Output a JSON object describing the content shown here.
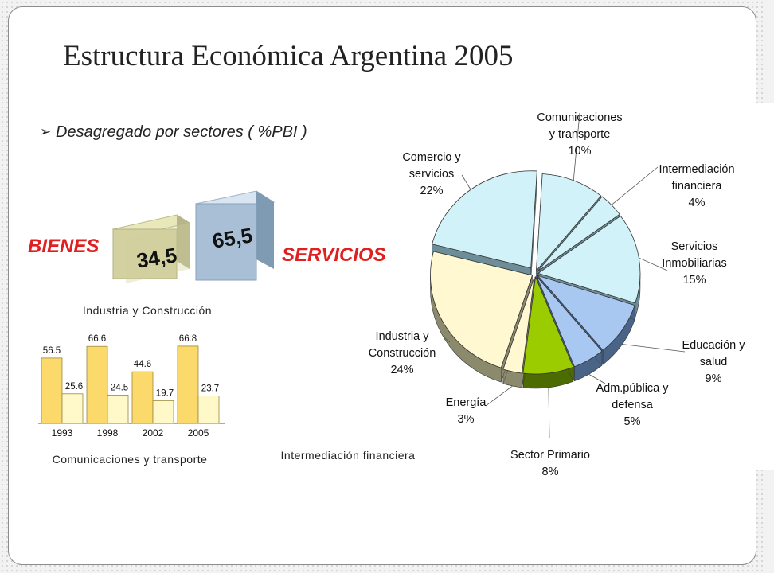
{
  "slide": {
    "title": "Estructura Económica Argentina 2005",
    "subtitle": "Desagregado por sectores ( %PBI )"
  },
  "blocks": {
    "bienes_label": "BIENES",
    "bienes_value": "34,5",
    "servicios_label": "SERVICIOS",
    "servicios_value": "65,5"
  },
  "chart_data": [
    {
      "type": "bar",
      "title": "Industria y Construcción",
      "categories": [
        "1993",
        "1998",
        "2002",
        "2005"
      ],
      "series": [
        {
          "values": [
            56.5,
            66.6,
            44.6,
            66.8
          ],
          "color": "#fbd96a"
        },
        {
          "values": [
            25.6,
            24.5,
            19.7,
            23.7
          ],
          "color": "#fff8c8"
        }
      ],
      "ylim": [
        0,
        75
      ]
    },
    {
      "type": "bar",
      "title": "Comunicaciones y transporte",
      "categories": [],
      "values": []
    },
    {
      "type": "bar",
      "title": "Intermediación financiera",
      "categories": [],
      "values": []
    },
    {
      "type": "pie",
      "slices": [
        {
          "label": "Comunicaciones y transporte",
          "value": 10,
          "display": "10%",
          "color": "#d2f2fa"
        },
        {
          "label": "Intermediación financiera",
          "value": 4,
          "display": "4%",
          "color": "#d2f2fa"
        },
        {
          "label": "Servicios Inmobiliarias",
          "value": 15,
          "display": "15%",
          "color": "#d2f2fa"
        },
        {
          "label": "Educación y salud",
          "value": 9,
          "display": "9%",
          "color": "#a8c8f2"
        },
        {
          "label": "Adm.pública y defensa",
          "value": 5,
          "display": "5%",
          "color": "#a8c8f2"
        },
        {
          "label": "Sector Primario",
          "value": 8,
          "display": "8%",
          "color": "#9bcc00"
        },
        {
          "label": "Energía",
          "value": 3,
          "display": "3%",
          "color": "#fff8d0"
        },
        {
          "label": "Industria y Construcción",
          "value": 24,
          "display": "24%",
          "color": "#fff8d0"
        },
        {
          "label": "Comercio y servicios",
          "value": 22,
          "display": "22%",
          "color": "#d2f2fa"
        }
      ]
    }
  ]
}
